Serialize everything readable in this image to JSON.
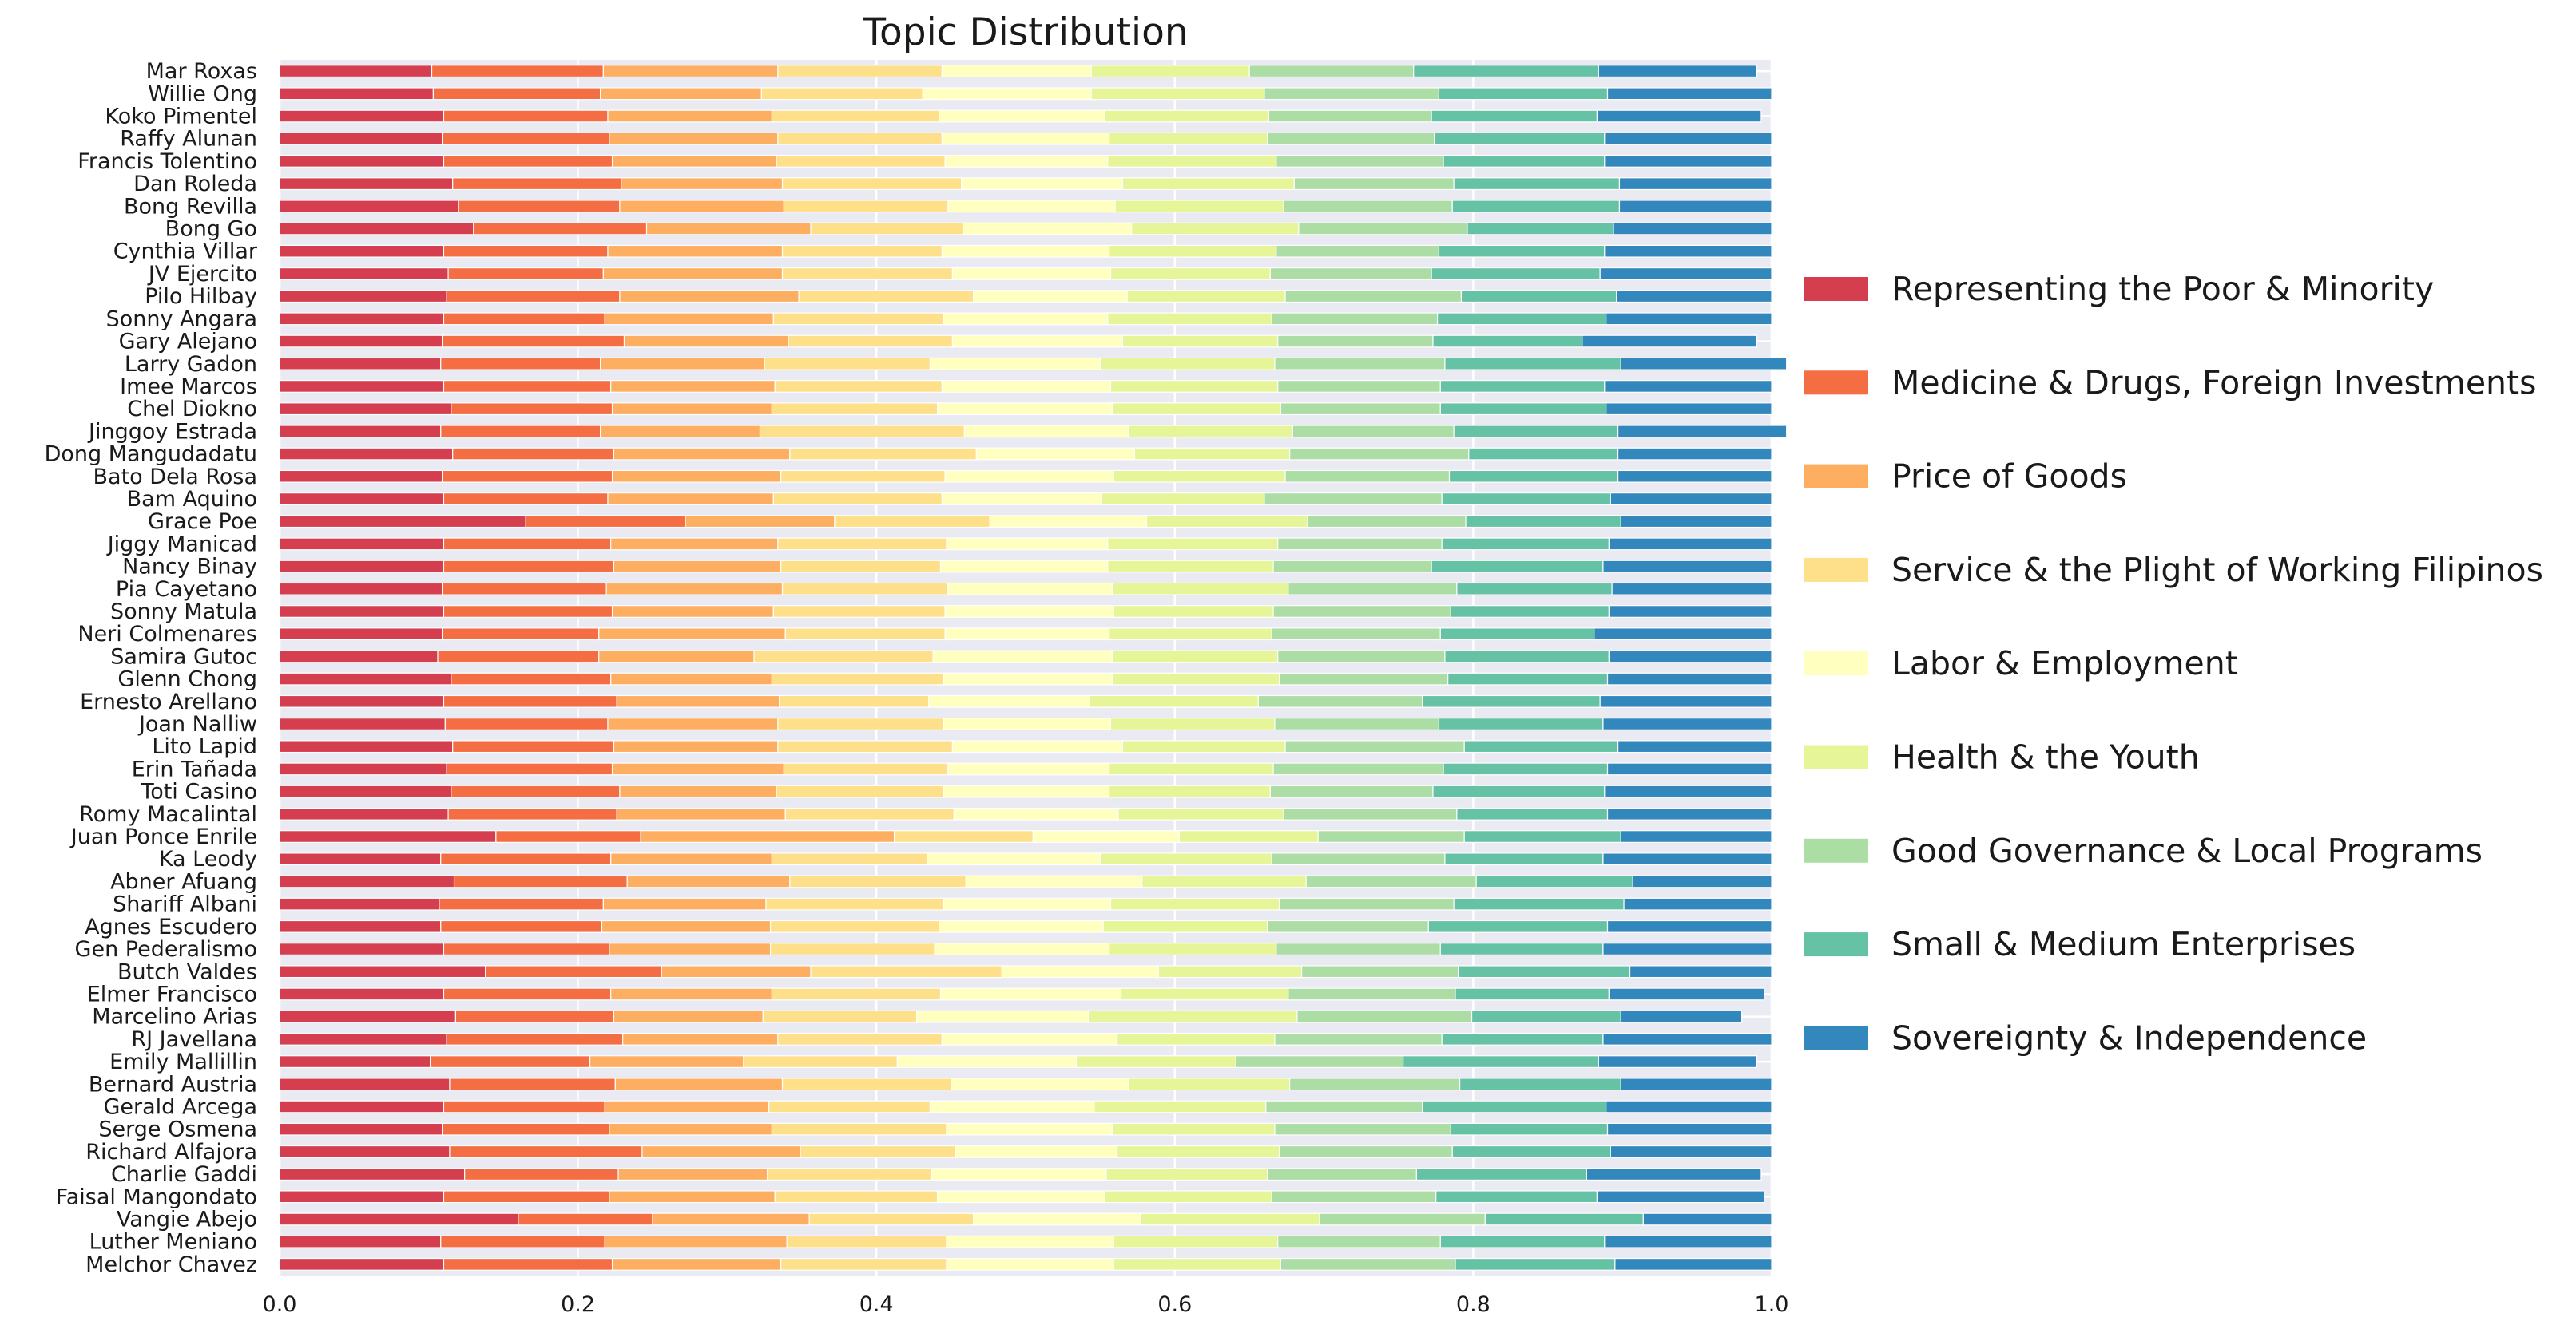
{
  "chart_data": {
    "type": "bar",
    "orientation": "horizontal",
    "stacked": true,
    "title": "Topic Distribution",
    "xlim": [
      0,
      1
    ],
    "x_ticks": [
      "0.0",
      "0.2",
      "0.4",
      "0.6",
      "0.8",
      "1.0"
    ],
    "grid": true,
    "legend_position": "right",
    "categories": [
      "Mar Roxas",
      "Willie Ong",
      "Koko Pimentel",
      "Raffy Alunan",
      "Francis Tolentino",
      "Dan Roleda",
      "Bong Revilla",
      "Bong Go",
      "Cynthia Villar",
      "JV Ejercito",
      "Pilo Hilbay",
      "Sonny Angara",
      "Gary Alejano",
      "Larry Gadon",
      "Imee Marcos",
      "Chel Diokno",
      "Jinggoy Estrada",
      "Dong Mangudadatu",
      "Bato Dela Rosa",
      "Bam Aquino",
      "Grace Poe",
      "Jiggy Manicad",
      "Nancy Binay",
      "Pia Cayetano",
      "Sonny Matula",
      "Neri Colmenares",
      "Samira Gutoc",
      "Glenn Chong",
      "Ernesto Arellano",
      "Joan Nalliw",
      "Lito Lapid",
      "Erin Tañada",
      "Toti Casino",
      "Romy Macalintal",
      "Juan Ponce Enrile",
      "Ka Leody",
      "Abner Afuang",
      "Shariff Albani",
      "Agnes Escudero",
      "Gen Pederalismo",
      "Butch Valdes",
      "Elmer Francisco",
      "Marcelino Arias",
      "RJ Javellana",
      "Emily Mallillin",
      "Bernard Austria",
      "Gerald Arcega",
      "Serge Osmena",
      "Richard Alfajora",
      "Charlie Gaddi",
      "Faisal Mangondato",
      "Vangie Abejo",
      "Luther Meniano",
      "Melchor Chavez"
    ],
    "series": [
      {
        "name": "Representing the Poor & Minority",
        "color": "#d53e4f",
        "values": [
          0.102,
          0.103,
          0.11,
          0.109,
          0.11,
          0.116,
          0.12,
          0.13,
          0.11,
          0.113,
          0.112,
          0.11,
          0.109,
          0.108,
          0.11,
          0.115,
          0.108,
          0.116,
          0.109,
          0.11,
          0.165,
          0.11,
          0.11,
          0.109,
          0.11,
          0.109,
          0.106,
          0.115,
          0.11,
          0.111,
          0.116,
          0.112,
          0.115,
          0.113,
          0.145,
          0.108,
          0.117,
          0.107,
          0.108,
          0.11,
          0.138,
          0.11,
          0.118,
          0.112,
          0.101,
          0.114,
          0.11,
          0.109,
          0.114,
          0.124,
          0.11,
          0.16,
          0.108,
          0.11
        ]
      },
      {
        "name": "Medicine & Drugs, Foreign Investments",
        "color": "#f46d43",
        "values": [
          0.115,
          0.112,
          0.11,
          0.112,
          0.113,
          0.113,
          0.108,
          0.116,
          0.11,
          0.104,
          0.116,
          0.108,
          0.122,
          0.107,
          0.112,
          0.108,
          0.107,
          0.108,
          0.114,
          0.11,
          0.107,
          0.112,
          0.114,
          0.11,
          0.113,
          0.105,
          0.108,
          0.107,
          0.116,
          0.109,
          0.108,
          0.111,
          0.113,
          0.113,
          0.097,
          0.114,
          0.116,
          0.11,
          0.108,
          0.111,
          0.118,
          0.112,
          0.106,
          0.118,
          0.107,
          0.111,
          0.108,
          0.112,
          0.129,
          0.103,
          0.111,
          0.09,
          0.11,
          0.113
        ]
      },
      {
        "name": "Price of Goods",
        "color": "#fdae61",
        "values": [
          0.117,
          0.108,
          0.11,
          0.113,
          0.11,
          0.108,
          0.11,
          0.11,
          0.117,
          0.12,
          0.12,
          0.113,
          0.11,
          0.11,
          0.11,
          0.107,
          0.107,
          0.118,
          0.113,
          0.111,
          0.1,
          0.112,
          0.112,
          0.118,
          0.108,
          0.125,
          0.104,
          0.108,
          0.109,
          0.114,
          0.11,
          0.115,
          0.105,
          0.113,
          0.17,
          0.108,
          0.109,
          0.109,
          0.113,
          0.108,
          0.1,
          0.108,
          0.1,
          0.104,
          0.103,
          0.112,
          0.11,
          0.109,
          0.106,
          0.1,
          0.111,
          0.105,
          0.122,
          0.113
        ]
      },
      {
        "name": "Service & the Plight of Working Filipinos",
        "color": "#fee08b",
        "values": [
          0.11,
          0.108,
          0.112,
          0.11,
          0.113,
          0.12,
          0.11,
          0.102,
          0.107,
          0.114,
          0.117,
          0.114,
          0.11,
          0.111,
          0.112,
          0.111,
          0.137,
          0.125,
          0.11,
          0.113,
          0.104,
          0.113,
          0.107,
          0.111,
          0.115,
          0.107,
          0.12,
          0.115,
          0.1,
          0.111,
          0.117,
          0.11,
          0.112,
          0.113,
          0.093,
          0.104,
          0.118,
          0.119,
          0.113,
          0.11,
          0.128,
          0.113,
          0.103,
          0.11,
          0.103,
          0.113,
          0.108,
          0.117,
          0.104,
          0.11,
          0.109,
          0.11,
          0.107,
          0.111
        ]
      },
      {
        "name": "Labor & Employment",
        "color": "#ffffbf",
        "values": [
          0.1,
          0.113,
          0.111,
          0.112,
          0.109,
          0.108,
          0.112,
          0.113,
          0.112,
          0.106,
          0.103,
          0.11,
          0.114,
          0.114,
          0.113,
          0.117,
          0.11,
          0.106,
          0.113,
          0.107,
          0.105,
          0.108,
          0.112,
          0.11,
          0.113,
          0.11,
          0.12,
          0.113,
          0.108,
          0.112,
          0.114,
          0.108,
          0.111,
          0.11,
          0.098,
          0.116,
          0.118,
          0.112,
          0.11,
          0.117,
          0.105,
          0.121,
          0.115,
          0.117,
          0.12,
          0.119,
          0.11,
          0.111,
          0.108,
          0.117,
          0.112,
          0.112,
          0.112,
          0.112
        ]
      },
      {
        "name": "Health & the Youth",
        "color": "#e6f598",
        "values": [
          0.106,
          0.116,
          0.11,
          0.106,
          0.113,
          0.115,
          0.113,
          0.112,
          0.112,
          0.107,
          0.106,
          0.11,
          0.104,
          0.117,
          0.112,
          0.113,
          0.11,
          0.104,
          0.115,
          0.109,
          0.108,
          0.114,
          0.111,
          0.118,
          0.107,
          0.109,
          0.111,
          0.112,
          0.113,
          0.11,
          0.109,
          0.11,
          0.108,
          0.111,
          0.093,
          0.115,
          0.11,
          0.113,
          0.11,
          0.112,
          0.096,
          0.112,
          0.14,
          0.106,
          0.107,
          0.108,
          0.115,
          0.109,
          0.109,
          0.108,
          0.112,
          0.12,
          0.11,
          0.112
        ]
      },
      {
        "name": "Good Governance & Local Programs",
        "color": "#abdda4",
        "values": [
          0.11,
          0.117,
          0.109,
          0.112,
          0.112,
          0.107,
          0.113,
          0.113,
          0.109,
          0.108,
          0.118,
          0.111,
          0.104,
          0.114,
          0.109,
          0.107,
          0.108,
          0.12,
          0.11,
          0.119,
          0.106,
          0.11,
          0.106,
          0.113,
          0.119,
          0.113,
          0.112,
          0.113,
          0.11,
          0.11,
          0.12,
          0.114,
          0.109,
          0.116,
          0.098,
          0.116,
          0.114,
          0.117,
          0.108,
          0.11,
          0.105,
          0.112,
          0.117,
          0.112,
          0.112,
          0.114,
          0.105,
          0.118,
          0.116,
          0.1,
          0.11,
          0.111,
          0.109,
          0.117
        ]
      },
      {
        "name": "Small & Medium Enterprises",
        "color": "#66c2a5",
        "values": [
          0.124,
          0.113,
          0.111,
          0.114,
          0.108,
          0.111,
          0.112,
          0.098,
          0.111,
          0.113,
          0.104,
          0.113,
          0.1,
          0.118,
          0.11,
          0.111,
          0.11,
          0.1,
          0.113,
          0.113,
          0.104,
          0.112,
          0.115,
          0.104,
          0.106,
          0.103,
          0.11,
          0.107,
          0.119,
          0.11,
          0.103,
          0.11,
          0.115,
          0.101,
          0.105,
          0.106,
          0.105,
          0.114,
          0.12,
          0.109,
          0.115,
          0.103,
          0.1,
          0.108,
          0.131,
          0.108,
          0.123,
          0.105,
          0.106,
          0.114,
          0.108,
          0.106,
          0.11,
          0.107
        ]
      },
      {
        "name": "Sovereignty & Independence",
        "color": "#3288bd",
        "values": [
          0.106,
          0.11,
          0.11,
          0.112,
          0.112,
          0.102,
          0.102,
          0.106,
          0.112,
          0.115,
          0.104,
          0.111,
          0.117,
          0.111,
          0.112,
          0.111,
          0.113,
          0.103,
          0.103,
          0.108,
          0.101,
          0.109,
          0.113,
          0.107,
          0.109,
          0.119,
          0.109,
          0.11,
          0.115,
          0.113,
          0.103,
          0.11,
          0.112,
          0.11,
          0.101,
          0.113,
          0.093,
          0.099,
          0.11,
          0.113,
          0.095,
          0.104,
          0.081,
          0.113,
          0.106,
          0.101,
          0.111,
          0.11,
          0.108,
          0.117,
          0.112,
          0.086,
          0.112,
          0.105
        ]
      }
    ]
  }
}
